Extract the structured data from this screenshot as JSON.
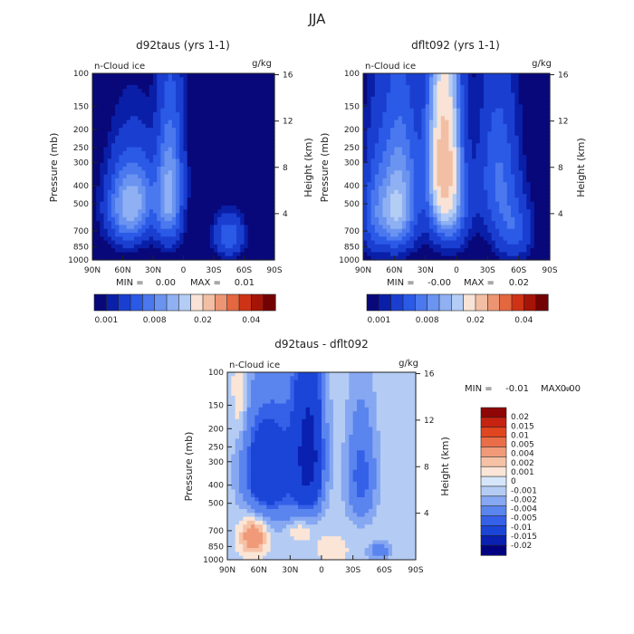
{
  "figure": {
    "title": "JJA"
  },
  "chart_data": [
    {
      "type": "heatmap",
      "id": "left",
      "title": "d92taus (yrs 1-1)",
      "field_label": "n-Cloud ice",
      "units": "g/kg",
      "ylabel": "Pressure (mb)",
      "y2label": "Height (km)",
      "x_ticks": [
        "90N",
        "60N",
        "30N",
        "0",
        "30S",
        "60S",
        "90S"
      ],
      "y_ticks": [
        "100",
        "150",
        "200",
        "250",
        "300",
        "400",
        "500",
        "700",
        "850",
        "1000"
      ],
      "y2_ticks": [
        "16",
        "12",
        "8",
        "4"
      ],
      "min_label": "MIN =",
      "min_value": "0.00",
      "max_label": "MAX =",
      "max_value": "0.01",
      "colorbar_labels": [
        "0.001",
        "0.008",
        "0.02",
        "0.04"
      ],
      "levels": [
        0.001,
        0.002,
        0.004,
        0.006,
        0.008,
        0.01,
        0.012,
        0.015,
        0.02,
        0.025,
        0.03,
        0.035,
        0.04,
        0.05
      ],
      "blobs": [
        {
          "lat": 55,
          "p": 520,
          "amp": 0.011,
          "dlat": 14,
          "dp": 180
        },
        {
          "lat": 15,
          "p": 500,
          "amp": 0.009,
          "dlat": 9,
          "dp": 200
        },
        {
          "lat": 12,
          "p": 260,
          "amp": 0.004,
          "dlat": 9,
          "dp": 200
        },
        {
          "lat": 40,
          "p": 430,
          "amp": 0.003,
          "dlat": 10,
          "dp": 150
        },
        {
          "lat": -45,
          "p": 750,
          "amp": 0.006,
          "dlat": 10,
          "dp": 130
        }
      ]
    },
    {
      "type": "heatmap",
      "id": "right",
      "title": "dflt092 (yrs 1-1)",
      "field_label": "n-Cloud ice",
      "units": "g/kg",
      "ylabel": "Pressure (mb)",
      "y2label": "Height (km)",
      "x_ticks": [
        "90N",
        "60N",
        "30N",
        "0",
        "30S",
        "60S",
        "90S"
      ],
      "y_ticks": [
        "100",
        "150",
        "200",
        "250",
        "300",
        "400",
        "500",
        "700",
        "850",
        "1000"
      ],
      "y2_ticks": [
        "16",
        "12",
        "8",
        "4"
      ],
      "min_label": "MIN =",
      "min_value": "-0.00",
      "max_label": "MAX =",
      "max_value": "0.02",
      "colorbar_labels": [
        "0.001",
        "0.008",
        "0.02",
        "0.04"
      ],
      "levels": [
        0.001,
        0.002,
        0.004,
        0.006,
        0.008,
        0.01,
        0.012,
        0.015,
        0.02,
        0.025,
        0.03,
        0.035,
        0.04,
        0.05
      ],
      "blobs": [
        {
          "lat": 12,
          "p": 280,
          "amp": 0.022,
          "dlat": 10,
          "dp": 220
        },
        {
          "lat": 55,
          "p": 380,
          "amp": 0.008,
          "dlat": 14,
          "dp": 250
        },
        {
          "lat": 60,
          "p": 600,
          "amp": 0.007,
          "dlat": 12,
          "dp": 180
        },
        {
          "lat": 5,
          "p": 550,
          "amp": 0.006,
          "dlat": 12,
          "dp": 200
        },
        {
          "lat": -40,
          "p": 350,
          "amp": 0.006,
          "dlat": 13,
          "dp": 220
        },
        {
          "lat": -55,
          "p": 700,
          "amp": 0.005,
          "dlat": 12,
          "dp": 180
        },
        {
          "lat": 80,
          "p": 550,
          "amp": 0.004,
          "dlat": 8,
          "dp": 250
        }
      ]
    },
    {
      "type": "heatmap",
      "id": "diff",
      "title": "d92taus - dflt092",
      "field_label": "n-Cloud ice",
      "units": "g/kg",
      "ylabel": "Pressure (mb)",
      "y2label": "Height (km)",
      "x_ticks": [
        "90N",
        "60N",
        "30N",
        "0",
        "30S",
        "60S",
        "90S"
      ],
      "y_ticks": [
        "100",
        "150",
        "200",
        "250",
        "300",
        "400",
        "500",
        "700",
        "850",
        "1000"
      ],
      "y2_ticks": [
        "16",
        "12",
        "8",
        "4"
      ],
      "min_label": "MIN =",
      "min_value": "-0.01",
      "max_label": "MAX =",
      "max_value": "0.00",
      "colorbar_labels": [
        "0.02",
        "0.015",
        "0.01",
        "0.005",
        "0.004",
        "0.002",
        "0.001",
        "0",
        "-0.001",
        "-0.002",
        "-0.004",
        "-0.005",
        "-0.01",
        "-0.015",
        "-0.02"
      ],
      "levels": [
        -0.02,
        -0.015,
        -0.01,
        -0.005,
        -0.004,
        -0.002,
        -0.001,
        0,
        0.001,
        0.002,
        0.004,
        0.005,
        0.01,
        0.015,
        0.02
      ],
      "background": -0.0005,
      "blobs": [
        {
          "lat": 12,
          "p": 280,
          "amp": -0.012,
          "dlat": 9,
          "dp": 160
        },
        {
          "lat": 55,
          "p": 340,
          "amp": -0.008,
          "dlat": 13,
          "dp": 140
        },
        {
          "lat": -38,
          "p": 360,
          "amp": -0.0045,
          "dlat": 9,
          "dp": 150
        },
        {
          "lat": 32,
          "p": 330,
          "amp": -0.003,
          "dlat": 12,
          "dp": 250
        },
        {
          "lat": -55,
          "p": 900,
          "amp": -0.003,
          "dlat": 7,
          "dp": 60
        },
        {
          "lat": 65,
          "p": 760,
          "amp": 0.004,
          "dlat": 9,
          "dp": 120
        },
        {
          "lat": 22,
          "p": 700,
          "amp": 0.002,
          "dlat": 9,
          "dp": 80
        },
        {
          "lat": -10,
          "p": 880,
          "amp": 0.0015,
          "dlat": 10,
          "dp": 100
        },
        {
          "lat": 78,
          "p": 130,
          "amp": 0.0016,
          "dlat": 5,
          "dp": 60
        }
      ]
    }
  ],
  "colors": {
    "seq": [
      "#08087a",
      "#0a1fa8",
      "#1a3fd0",
      "#2a5ae6",
      "#4b78ee",
      "#6a94f0",
      "#8fb0f2",
      "#b4cdf5",
      "#f8e3d6",
      "#f2bfa5",
      "#ed9572",
      "#e4673f",
      "#cf3315",
      "#a51406",
      "#730202"
    ],
    "div": [
      "#020280",
      "#0a20b0",
      "#1b45d6",
      "#3560e8",
      "#5a84ee",
      "#86a7f1",
      "#b4ccf4",
      "#d6e6fa",
      "#fbe5d6",
      "#f6c2a6",
      "#f09a7a",
      "#ea6e48",
      "#e0461f",
      "#c62310",
      "#8f0606"
    ]
  }
}
